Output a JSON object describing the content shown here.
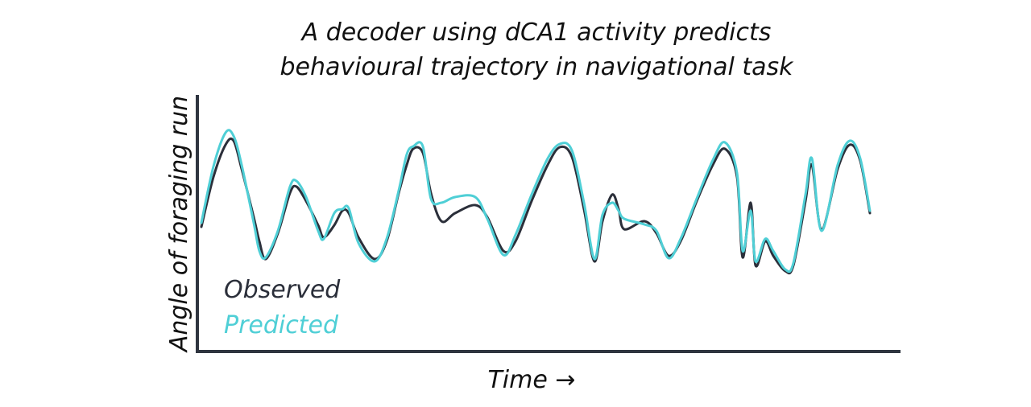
{
  "chart_data": {
    "type": "line",
    "title": [
      "A decoder using dCA1 activity predicts",
      "behavioural trajectory in navigational task"
    ],
    "xlabel": "Time →",
    "ylabel": "Angle of foraging run",
    "xlim": [
      0,
      873
    ],
    "ylim": [
      0,
      319
    ],
    "x": [
      5,
      20,
      35,
      45,
      55,
      70,
      77,
      85,
      100,
      115,
      123,
      135,
      150,
      157,
      170,
      180,
      188,
      200,
      220,
      235,
      250,
      260,
      268,
      280,
      290,
      303,
      320,
      345,
      360,
      380,
      395,
      415,
      435,
      450,
      465,
      480,
      493,
      503,
      515,
      523,
      530,
      555,
      570,
      585,
      600,
      620,
      640,
      655,
      670,
      677,
      687,
      693,
      705,
      715,
      730,
      740,
      755,
      763,
      775,
      795,
      810,
      823,
      835
    ],
    "series": [
      {
        "name": "Observed",
        "color": "#2b2f3a",
        "values": [
          155,
          217,
          257,
          262,
          227,
          167,
          137,
          115,
          147,
          197,
          205,
          187,
          157,
          142,
          157,
          175,
          172,
          142,
          115,
          137,
          197,
          232,
          252,
          247,
          197,
          162,
          172,
          182,
          167,
          125,
          137,
          187,
          232,
          254,
          242,
          177,
          112,
          162,
          195,
          177,
          152,
          162,
          147,
          119,
          137,
          187,
          232,
          252,
          217,
          117,
          185,
          107,
          137,
          119,
          100,
          107,
          187,
          232,
          152,
          227,
          257,
          237,
          172
        ]
      },
      {
        "name": "Predicted",
        "color": "#4fcfd6",
        "values": [
          160,
          230,
          272,
          268,
          232,
          160,
          125,
          117,
          150,
          205,
          212,
          192,
          150,
          140,
          172,
          177,
          178,
          135,
          112,
          140,
          200,
          245,
          255,
          255,
          190,
          185,
          192,
          192,
          165,
          120,
          145,
          195,
          240,
          258,
          250,
          185,
          115,
          170,
          185,
          175,
          165,
          158,
          150,
          116,
          140,
          190,
          238,
          260,
          222,
          125,
          175,
          112,
          140,
          125,
          102,
          110,
          195,
          240,
          150,
          232,
          262,
          240,
          175
        ]
      }
    ],
    "legend": "lower left"
  }
}
